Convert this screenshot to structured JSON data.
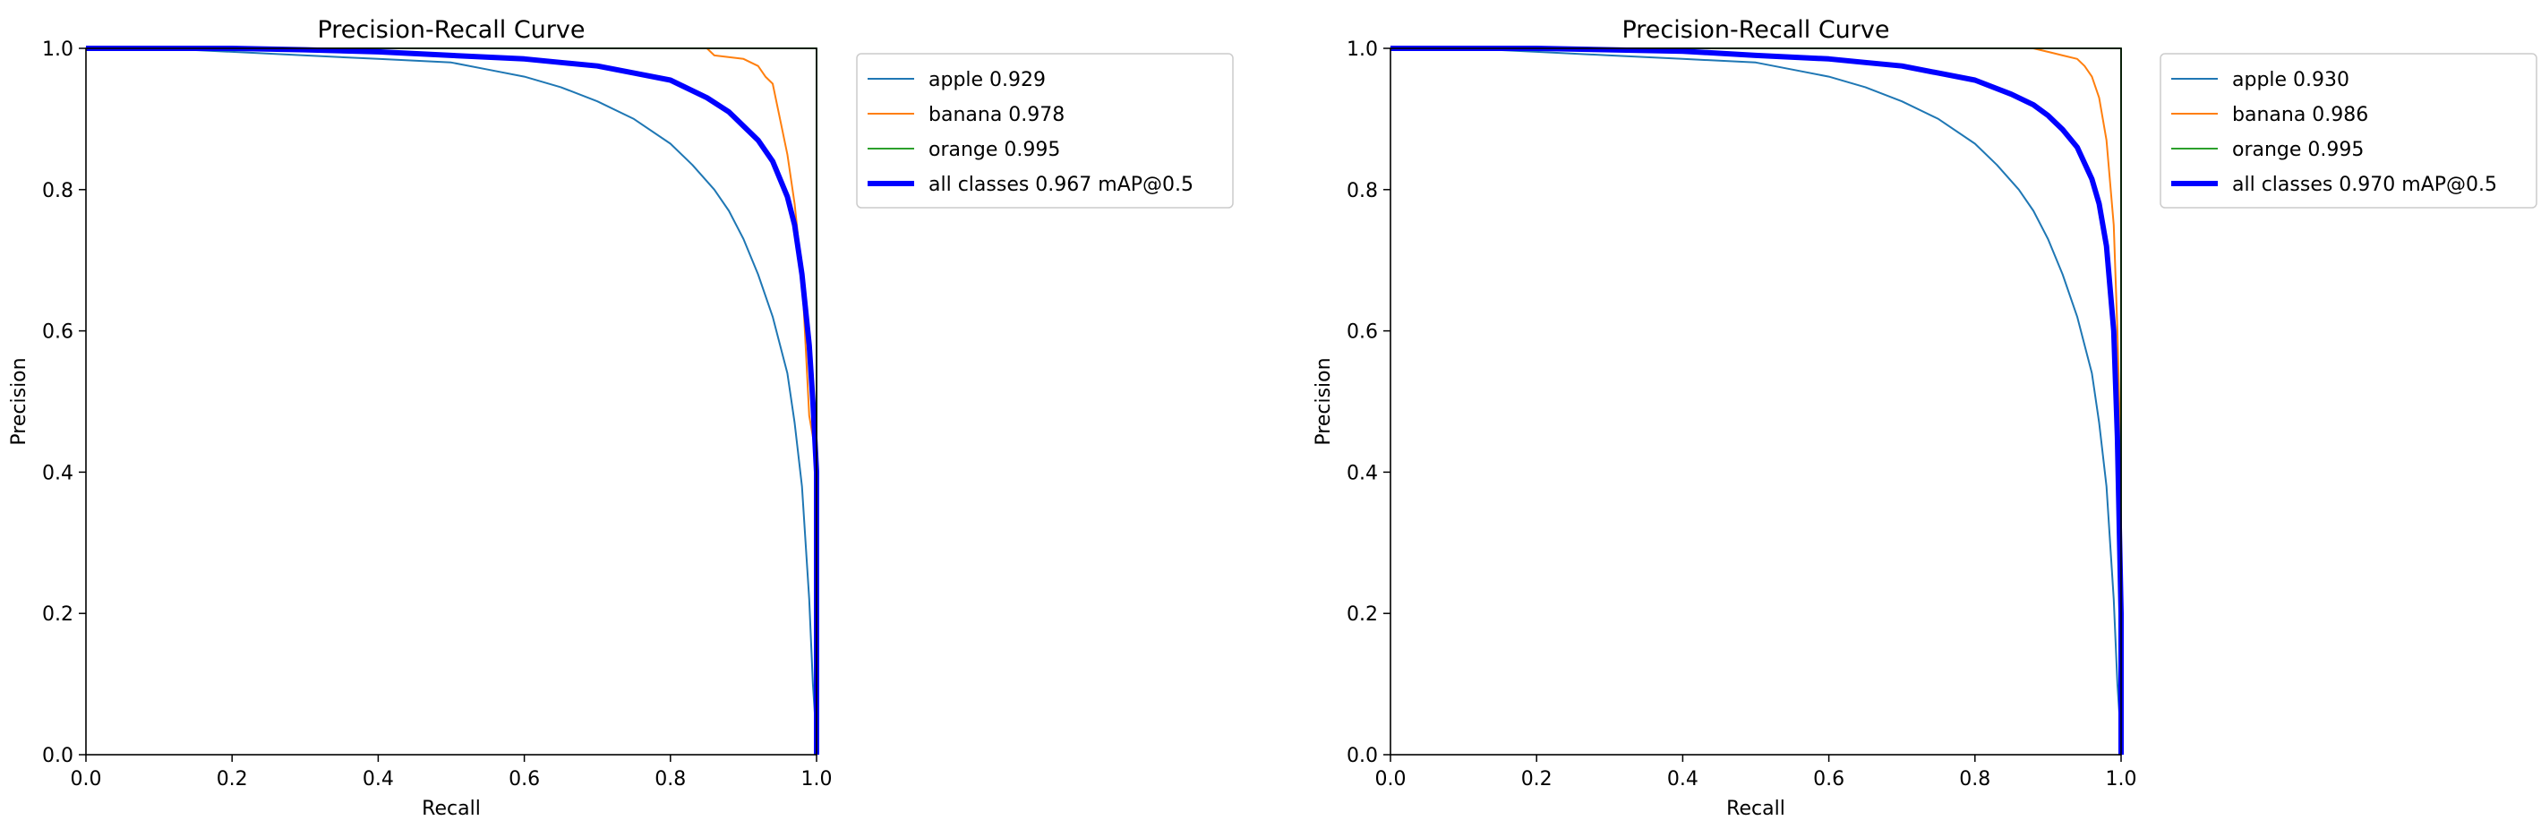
{
  "chart_data": [
    {
      "type": "line",
      "title": "Precision-Recall Curve",
      "xlabel": "Recall",
      "ylabel": "Precision",
      "xlim": [
        0.0,
        1.0
      ],
      "ylim": [
        0.0,
        1.0
      ],
      "x_ticks": [
        "0.0",
        "0.2",
        "0.4",
        "0.6",
        "0.8",
        "1.0"
      ],
      "y_ticks": [
        "0.0",
        "0.2",
        "0.4",
        "0.6",
        "0.8",
        "1.0"
      ],
      "grid": false,
      "legend_position": "outside-right-top",
      "series": [
        {
          "name": "apple 0.929",
          "color": "#1f77b4",
          "width": "thin",
          "x": [
            0.0,
            0.1,
            0.2,
            0.3,
            0.4,
            0.5,
            0.55,
            0.6,
            0.65,
            0.7,
            0.75,
            0.8,
            0.83,
            0.86,
            0.88,
            0.9,
            0.92,
            0.94,
            0.96,
            0.97,
            0.98,
            0.99,
            0.995,
            1.0,
            1.0
          ],
          "y": [
            1.0,
            1.0,
            0.995,
            0.99,
            0.985,
            0.98,
            0.97,
            0.96,
            0.945,
            0.925,
            0.9,
            0.865,
            0.835,
            0.8,
            0.77,
            0.73,
            0.68,
            0.62,
            0.54,
            0.47,
            0.38,
            0.22,
            0.1,
            0.02,
            0.0
          ]
        },
        {
          "name": "banana 0.978",
          "color": "#ff7f0e",
          "width": "thin",
          "x": [
            0.0,
            0.2,
            0.4,
            0.6,
            0.8,
            0.85,
            0.86,
            0.9,
            0.92,
            0.93,
            0.94,
            0.95,
            0.96,
            0.97,
            0.98,
            0.99,
            0.995,
            1.0,
            1.0
          ],
          "y": [
            1.0,
            1.0,
            1.0,
            1.0,
            1.0,
            1.0,
            0.99,
            0.985,
            0.975,
            0.96,
            0.95,
            0.9,
            0.85,
            0.78,
            0.68,
            0.48,
            0.45,
            0.45,
            0.0
          ]
        },
        {
          "name": "orange 0.995",
          "color": "#2ca02c",
          "width": "thin",
          "x": [
            0.0,
            0.2,
            0.4,
            0.6,
            0.8,
            0.95,
            1.0,
            1.0
          ],
          "y": [
            1.0,
            1.0,
            1.0,
            1.0,
            1.0,
            1.0,
            1.0,
            0.0
          ]
        },
        {
          "name": "all classes 0.967 mAP@0.5",
          "color": "#0000ff",
          "width": "thick",
          "x": [
            0.0,
            0.2,
            0.3,
            0.4,
            0.5,
            0.6,
            0.65,
            0.7,
            0.75,
            0.8,
            0.85,
            0.88,
            0.9,
            0.92,
            0.94,
            0.96,
            0.97,
            0.98,
            0.99,
            0.995,
            1.0,
            1.0
          ],
          "y": [
            1.0,
            1.0,
            0.998,
            0.995,
            0.99,
            0.985,
            0.98,
            0.975,
            0.965,
            0.955,
            0.93,
            0.91,
            0.89,
            0.87,
            0.84,
            0.79,
            0.75,
            0.68,
            0.58,
            0.5,
            0.4,
            0.0
          ]
        }
      ]
    },
    {
      "type": "line",
      "title": "Precision-Recall Curve",
      "xlabel": "Recall",
      "ylabel": "Precision",
      "xlim": [
        0.0,
        1.0
      ],
      "ylim": [
        0.0,
        1.0
      ],
      "x_ticks": [
        "0.0",
        "0.2",
        "0.4",
        "0.6",
        "0.8",
        "1.0"
      ],
      "y_ticks": [
        "0.0",
        "0.2",
        "0.4",
        "0.6",
        "0.8",
        "1.0"
      ],
      "grid": false,
      "legend_position": "outside-right-top",
      "series": [
        {
          "name": "apple 0.930",
          "color": "#1f77b4",
          "width": "thin",
          "x": [
            0.0,
            0.1,
            0.2,
            0.3,
            0.4,
            0.5,
            0.55,
            0.6,
            0.65,
            0.7,
            0.75,
            0.8,
            0.83,
            0.86,
            0.88,
            0.9,
            0.92,
            0.94,
            0.96,
            0.97,
            0.98,
            0.99,
            0.995,
            1.0,
            1.0
          ],
          "y": [
            1.0,
            1.0,
            0.995,
            0.99,
            0.985,
            0.98,
            0.97,
            0.96,
            0.945,
            0.925,
            0.9,
            0.865,
            0.835,
            0.8,
            0.77,
            0.73,
            0.68,
            0.62,
            0.54,
            0.47,
            0.38,
            0.22,
            0.1,
            0.02,
            0.0
          ]
        },
        {
          "name": "banana 0.986",
          "color": "#ff7f0e",
          "width": "thin",
          "x": [
            0.0,
            0.2,
            0.4,
            0.6,
            0.8,
            0.88,
            0.9,
            0.92,
            0.94,
            0.95,
            0.96,
            0.97,
            0.98,
            0.99,
            0.995,
            1.0,
            1.0
          ],
          "y": [
            1.0,
            1.0,
            1.0,
            1.0,
            1.0,
            1.0,
            0.995,
            0.99,
            0.985,
            0.975,
            0.96,
            0.93,
            0.87,
            0.75,
            0.6,
            0.4,
            0.0
          ]
        },
        {
          "name": "orange 0.995",
          "color": "#2ca02c",
          "width": "thin",
          "x": [
            0.0,
            0.2,
            0.4,
            0.6,
            0.8,
            0.95,
            1.0,
            1.0
          ],
          "y": [
            1.0,
            1.0,
            1.0,
            1.0,
            1.0,
            1.0,
            1.0,
            0.0
          ]
        },
        {
          "name": "all classes 0.970 mAP@0.5",
          "color": "#0000ff",
          "width": "thick",
          "x": [
            0.0,
            0.2,
            0.3,
            0.4,
            0.5,
            0.6,
            0.65,
            0.7,
            0.75,
            0.8,
            0.85,
            0.88,
            0.9,
            0.92,
            0.94,
            0.96,
            0.97,
            0.98,
            0.99,
            0.995,
            1.0,
            1.0
          ],
          "y": [
            1.0,
            1.0,
            0.998,
            0.996,
            0.99,
            0.985,
            0.98,
            0.975,
            0.965,
            0.955,
            0.935,
            0.92,
            0.905,
            0.885,
            0.86,
            0.815,
            0.78,
            0.72,
            0.6,
            0.45,
            0.2,
            0.0
          ]
        }
      ]
    }
  ]
}
